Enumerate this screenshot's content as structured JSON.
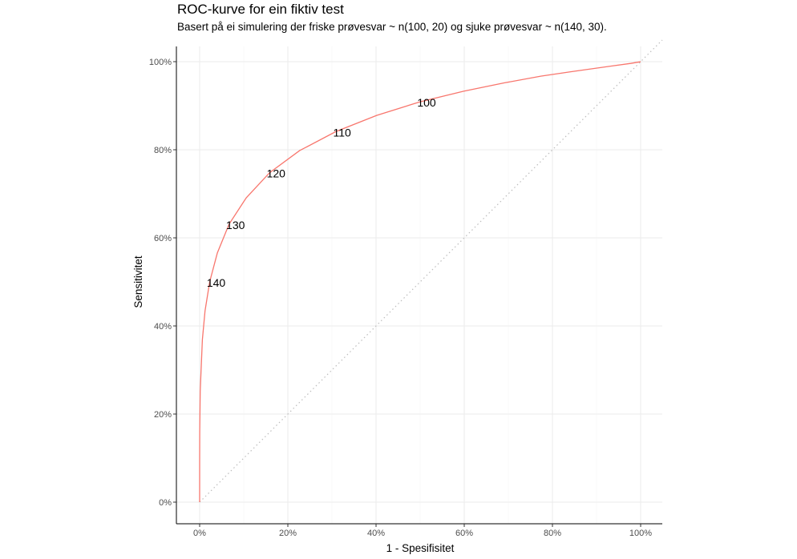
{
  "chart_data": {
    "type": "line",
    "title": "ROC-kurve for ein fiktiv test",
    "subtitle": "Basert på ei simulering der friske prøvesvar ~ n(100, 20) og sjuke prøvesvar ~ n(140, 30).",
    "xlabel": "1 - Spesifisitet",
    "ylabel": "Sensitivitet",
    "xlim": [
      0,
      1
    ],
    "ylim": [
      0,
      1
    ],
    "xticks": [
      0,
      0.2,
      0.4,
      0.6,
      0.8,
      1
    ],
    "yticks": [
      0,
      0.2,
      0.4,
      0.6,
      0.8,
      1
    ],
    "xtick_labels": [
      "0%",
      "20%",
      "40%",
      "60%",
      "80%",
      "100%"
    ],
    "ytick_labels": [
      "0%",
      "20%",
      "40%",
      "60%",
      "80%",
      "100%"
    ],
    "grid": true,
    "color": "#F8766D",
    "diagonal_reference": true,
    "series": [
      {
        "x": [
          0,
          0,
          3e-05,
          0.0002,
          0.0013,
          0.0062,
          0.0122,
          0.0228,
          0.0401,
          0.0668,
          0.1056,
          0.1587,
          0.2266,
          0.3085,
          0.4013,
          0.5,
          0.5987,
          0.6915,
          0.7734,
          0.8413,
          0.9332,
          0.9772,
          0.9987,
          1
        ],
        "y": [
          0,
          0.023,
          0.091,
          0.159,
          0.252,
          0.369,
          0.434,
          0.5,
          0.566,
          0.631,
          0.691,
          0.748,
          0.798,
          0.841,
          0.878,
          0.909,
          0.933,
          0.952,
          0.967,
          0.977,
          0.99,
          0.996,
          0.9997,
          1
        ]
      }
    ],
    "annotations": [
      {
        "text": "140",
        "x": 0.0228,
        "y": 0.5
      },
      {
        "text": "130",
        "x": 0.0668,
        "y": 0.631
      },
      {
        "text": "120",
        "x": 0.1587,
        "y": 0.748
      },
      {
        "text": "110",
        "x": 0.3085,
        "y": 0.841
      },
      {
        "text": "100",
        "x": 0.5,
        "y": 0.909
      }
    ]
  }
}
